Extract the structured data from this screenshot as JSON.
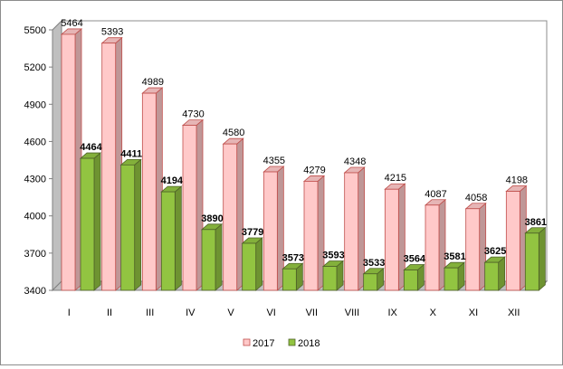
{
  "chart_data": {
    "type": "bar",
    "categories": [
      "I",
      "II",
      "III",
      "IV",
      "V",
      "VI",
      "VII",
      "VIII",
      "IX",
      "X",
      "XI",
      "XII"
    ],
    "series": [
      {
        "name": "2017",
        "values": [
          5464,
          5393,
          4989,
          4730,
          4580,
          4355,
          4279,
          4348,
          4215,
          4087,
          4058,
          4198
        ],
        "color": "#ffc9c9",
        "edge": "#c0504d",
        "label_style": "normal"
      },
      {
        "name": "2018",
        "values": [
          4464,
          4411,
          4194,
          3890,
          3779,
          3573,
          3593,
          3533,
          3564,
          3581,
          3625,
          3861
        ],
        "color": "#92c441",
        "edge": "#4f6228",
        "label_style": "bold"
      }
    ],
    "ylim": [
      3400,
      5500
    ],
    "yticks": [
      3400,
      3700,
      4000,
      4300,
      4600,
      4900,
      5200,
      5500
    ],
    "grid": false,
    "legend_position": "bottom",
    "three_d": true
  }
}
